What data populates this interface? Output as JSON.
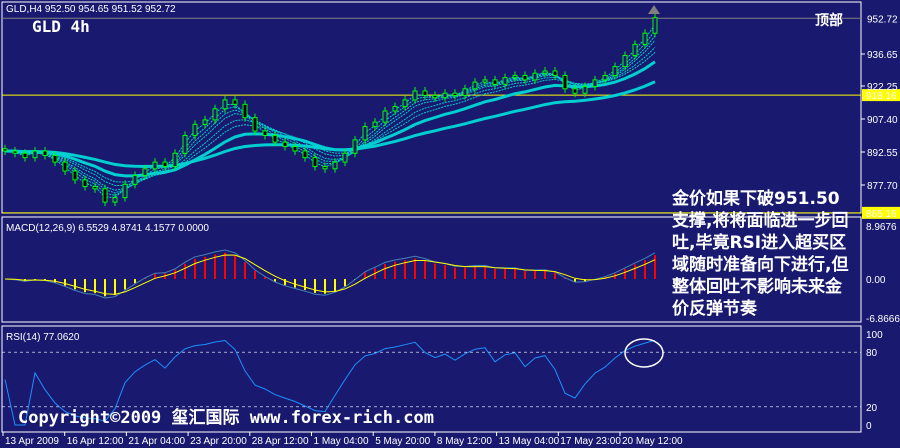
{
  "header": {
    "symbol_line": "GLD,H4  952.50 954.65 951.52 952.72",
    "title": "GLD 4h"
  },
  "annotation": {
    "top_label": "顶部",
    "note": "金价如果下破951.50支撑,将将面临进一步回吐,毕竟RSI进入超买区域随时准备向下进行,但整体回吐不影响未来金价反弹节奏",
    "copyright": "Copyright©2009 玺汇国际 www.forex-rich.com"
  },
  "colors": {
    "background": "#191970",
    "candle": "#00ff00",
    "ma": "#00ced1",
    "macd_main": "#4682b4",
    "macd_signal": "#ffff00",
    "hist_up": "#ff0000",
    "hist_down": "#ffff00",
    "rsi": "#1e90ff",
    "level_line": "#ffff00"
  },
  "chart_data": [
    {
      "type": "candlestick",
      "pane": "price",
      "symbol": "GLD",
      "timeframe": "H4",
      "ohlc_last": {
        "open": 952.5,
        "high": 954.65,
        "low": 951.52,
        "close": 952.72
      },
      "y_ticks": [
        "952.72",
        "936.65",
        "922.25",
        "907.40",
        "892.55",
        "877.70"
      ],
      "horizontal_levels": [
        "918.16",
        "865.16"
      ],
      "ylim": [
        862,
        957
      ],
      "x_ticks": [
        "13 Apr 2009",
        "16 Apr 12:00",
        "21 Apr 04:00",
        "23 Apr 20:00",
        "28 Apr 12:00",
        "1 May 04:00",
        "5 May 20:00",
        "8 May 12:00",
        "13 May 04:00",
        "17 May 23:00",
        "20 May 12:00"
      ],
      "close": [
        893,
        892,
        890,
        893,
        891,
        888,
        884,
        880,
        877,
        876,
        870,
        872,
        878,
        882,
        885,
        888,
        886,
        892,
        900,
        905,
        907,
        912,
        916,
        914,
        908,
        902,
        900,
        897,
        895,
        893,
        890,
        886,
        885,
        888,
        892,
        898,
        904,
        906,
        911,
        913,
        916,
        920,
        918,
        917,
        919,
        918,
        921,
        924,
        925,
        923,
        926,
        927,
        925,
        928,
        929,
        927,
        921,
        919,
        922,
        925,
        927,
        931,
        936,
        941,
        946,
        953
      ]
    },
    {
      "type": "line",
      "pane": "macd",
      "label": "MACD(12,26,9) 6.5529 4.8741 4.1577 0.0000",
      "y_ticks": [
        "8.9676",
        "0.00",
        "-6.8666"
      ]
    },
    {
      "type": "line",
      "pane": "rsi",
      "label": "RSI(14) 77.0620",
      "y_ticks": [
        "100",
        "80",
        "20",
        "0"
      ],
      "levels": [
        80,
        20
      ]
    }
  ]
}
